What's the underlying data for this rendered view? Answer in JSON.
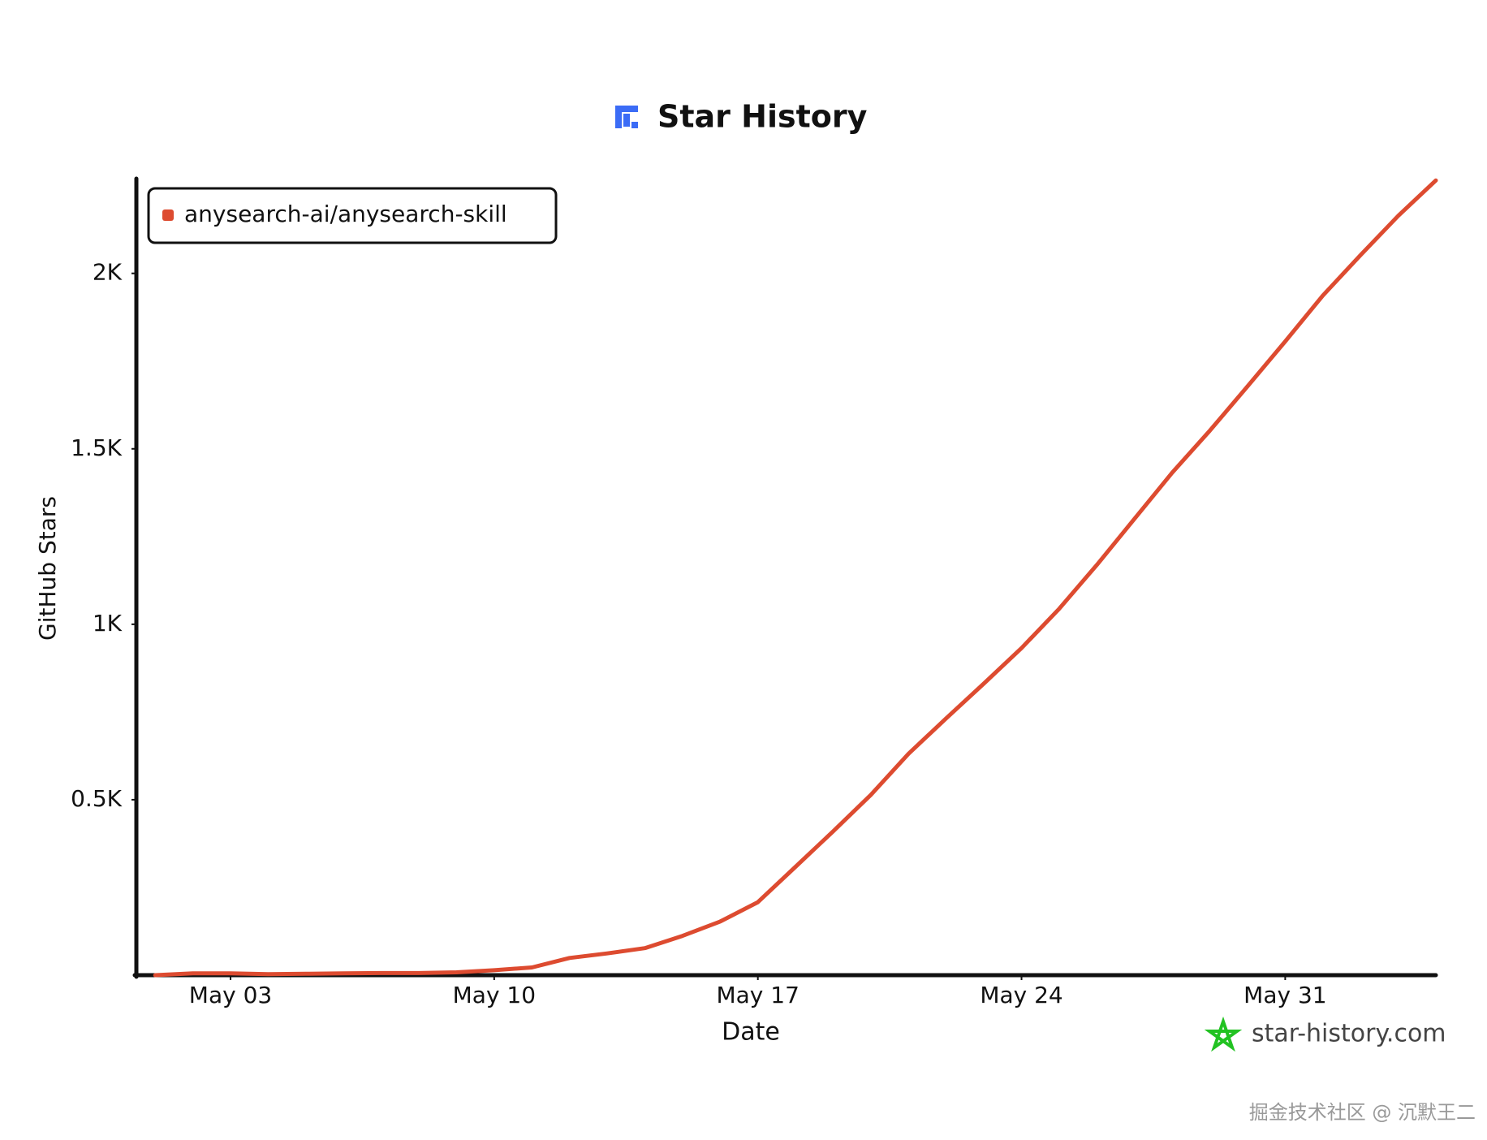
{
  "chart_data": {
    "type": "line",
    "title": "Star History",
    "x_label": "Date",
    "y_label": "GitHub Stars",
    "x": [
      1,
      2,
      3,
      4,
      5,
      6,
      7,
      8,
      9,
      10,
      11,
      12,
      13,
      14,
      15,
      16,
      17,
      18,
      19,
      20,
      21,
      22,
      23,
      24,
      25,
      26,
      27,
      28,
      29,
      30,
      31,
      32,
      33,
      34,
      35
    ],
    "series": [
      {
        "name": "anysearch-ai/anysearch-skill",
        "color": "#dd4b30",
        "values": [
          0,
          5,
          5,
          3,
          4,
          5,
          6,
          6,
          8,
          14,
          22,
          49,
          62,
          77,
          112,
          153,
          208,
          309,
          410,
          514,
          631,
          732,
          831,
          932,
          1044,
          1169,
          1301,
          1432,
          1552,
          1678,
          1806,
          1937,
          2052,
          2164,
          2265
        ]
      }
    ],
    "xlim": [
      0.5,
      35
    ],
    "ylim": [
      0,
      2270
    ],
    "xticks": [
      {
        "value": 3,
        "label": "May 03"
      },
      {
        "value": 10,
        "label": "May 10"
      },
      {
        "value": 17,
        "label": "May 17"
      },
      {
        "value": 24,
        "label": "May 24"
      },
      {
        "value": 31,
        "label": "May 31"
      }
    ],
    "yticks": [
      {
        "value": 500,
        "label": "0.5K"
      },
      {
        "value": 1000,
        "label": "1K"
      },
      {
        "value": 1500,
        "label": "1.5K"
      },
      {
        "value": 2000,
        "label": "2K"
      }
    ],
    "legend": "top-left",
    "watermark": "star-history.com",
    "footer": "掘金技术社区 @ 沉默王二"
  }
}
